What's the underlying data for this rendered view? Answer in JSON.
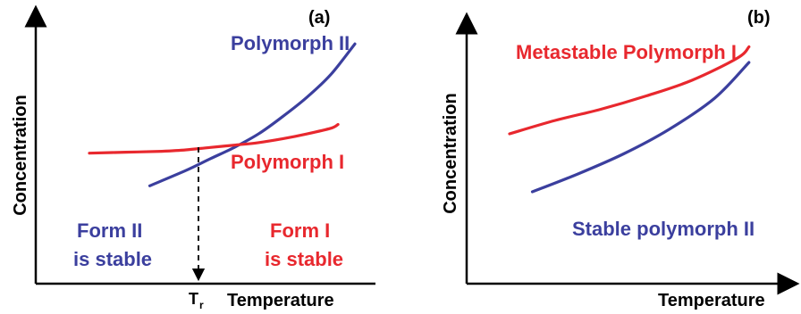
{
  "chart_data": [
    {
      "panel": "(a)",
      "type": "line",
      "xlabel": "Temperature",
      "ylabel": "Concentration",
      "x_tick_label": "T",
      "x_tick_subscript": "r",
      "series": [
        {
          "name": "Polymorph II",
          "color": "#3b3f9e",
          "points": [
            [
              0.25,
              0.25
            ],
            [
              0.4,
              0.33
            ],
            [
              0.5,
              0.39
            ],
            [
              0.6,
              0.45
            ],
            [
              0.7,
              0.52
            ],
            [
              0.8,
              0.61
            ],
            [
              0.9,
              0.71
            ],
            [
              1.0,
              0.83
            ],
            [
              1.1,
              0.99
            ]
          ]
        },
        {
          "name": "Polymorph I",
          "color": "#e8282e",
          "points": [
            [
              0.0,
              0.42
            ],
            [
              0.15,
              0.425
            ],
            [
              0.3,
              0.43
            ],
            [
              0.4,
              0.437
            ],
            [
              0.5,
              0.45
            ],
            [
              0.6,
              0.462
            ],
            [
              0.7,
              0.475
            ],
            [
              0.8,
              0.495
            ],
            [
              0.9,
              0.52
            ],
            [
              1.0,
              0.55
            ],
            [
              1.03,
              0.57
            ]
          ]
        }
      ],
      "transition_x": 0.5,
      "regions": [
        {
          "lines": [
            "Form II",
            "is stable"
          ],
          "color": "#3b3f9e"
        },
        {
          "lines": [
            "Form I",
            "is stable"
          ],
          "color": "#e8282e"
        }
      ]
    },
    {
      "panel": "(b)",
      "type": "line",
      "xlabel": "Temperature",
      "ylabel": "Concentration",
      "series": [
        {
          "name": "Metastable Polymorph I",
          "color": "#e8282e",
          "points": [
            [
              0.0,
              0.5
            ],
            [
              0.2,
              0.56
            ],
            [
              0.4,
              0.61
            ],
            [
              0.6,
              0.67
            ],
            [
              0.8,
              0.74
            ],
            [
              1.0,
              0.84
            ],
            [
              1.05,
              0.89
            ]
          ]
        },
        {
          "name": "Stable polymorph II",
          "color": "#3b3f9e",
          "points": [
            [
              0.1,
              0.24
            ],
            [
              0.3,
              0.32
            ],
            [
              0.5,
              0.41
            ],
            [
              0.7,
              0.52
            ],
            [
              0.9,
              0.66
            ],
            [
              1.05,
              0.82
            ]
          ]
        }
      ]
    }
  ]
}
